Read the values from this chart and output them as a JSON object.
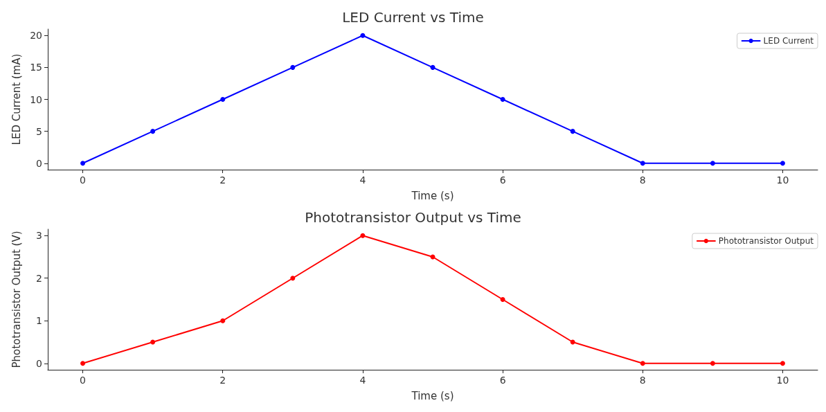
{
  "chart_data": [
    {
      "type": "line",
      "title": "LED Current vs Time",
      "xlabel": "Time (s)",
      "ylabel": "LED Current (mA)",
      "x": [
        0,
        1,
        2,
        3,
        4,
        5,
        6,
        7,
        8,
        9,
        10
      ],
      "series": [
        {
          "name": "LED Current",
          "color": "#0000ff",
          "values": [
            0,
            5,
            10,
            15,
            20,
            15,
            10,
            5,
            0,
            0,
            0
          ]
        }
      ],
      "xlim": [
        -0.5,
        10.5
      ],
      "xticks": [
        0,
        2,
        4,
        6,
        8,
        10
      ],
      "ylim": [
        -1,
        21
      ],
      "yticks": [
        0,
        5,
        10,
        15,
        20
      ],
      "grid": false,
      "legend": "top right",
      "marker": "circle",
      "line_style": "solid"
    },
    {
      "type": "line",
      "title": "Phototransistor Output vs Time",
      "xlabel": "Time (s)",
      "ylabel": "Phototransistor Output (V)",
      "x": [
        0,
        1,
        2,
        3,
        4,
        5,
        6,
        7,
        8,
        9,
        10
      ],
      "series": [
        {
          "name": "Phototransistor Output",
          "color": "#ff0000",
          "values": [
            0,
            0.5,
            1,
            2,
            3,
            2.5,
            1.5,
            0.5,
            0,
            0,
            0
          ]
        }
      ],
      "xlim": [
        -0.5,
        10.5
      ],
      "xticks": [
        0,
        2,
        4,
        6,
        8,
        10
      ],
      "ylim": [
        -0.15,
        3.15
      ],
      "yticks": [
        0,
        1,
        2,
        3
      ],
      "grid": false,
      "legend": "top right",
      "marker": "circle",
      "line_style": "solid"
    }
  ]
}
